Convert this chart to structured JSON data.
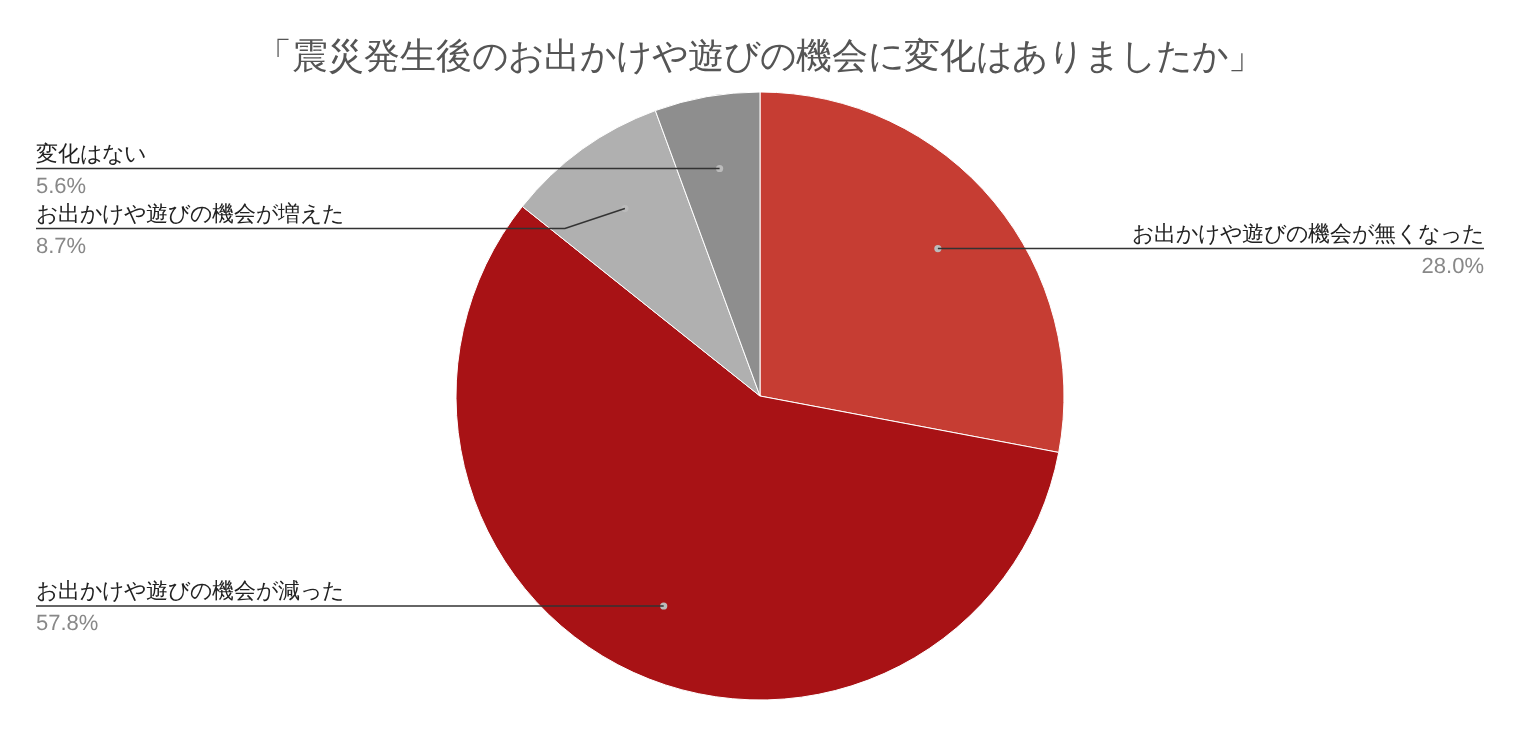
{
  "chart_data": {
    "type": "pie",
    "title": "「震災発生後のお出かけや遊びの機会に変化はありましたか」",
    "categories": [
      "お出かけや遊びの機会が無くなった",
      "お出かけや遊びの機会が減った",
      "お出かけや遊びの機会が増えた",
      "変化はない"
    ],
    "values": [
      28.0,
      57.8,
      8.7,
      5.6
    ],
    "value_labels": [
      "28.0%",
      "57.8%",
      "8.7%",
      "5.6%"
    ],
    "colors": [
      "#c63d33",
      "#a81215",
      "#b0b0b0",
      "#8e8e8e"
    ]
  }
}
